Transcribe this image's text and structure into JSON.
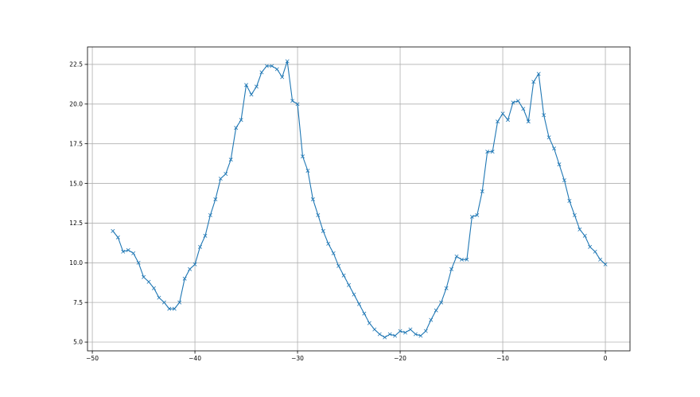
{
  "chart_data": {
    "type": "line",
    "title": "",
    "xlabel": "",
    "ylabel": "",
    "xlim": [
      -50.47,
      2.4
    ],
    "ylim": [
      4.45,
      23.6
    ],
    "grid": true,
    "marker": "x",
    "line_color": "#1f77b4",
    "grid_color": "#b0b0b0",
    "x_ticks": [
      -50,
      -40,
      -30,
      -20,
      -10,
      0
    ],
    "x_tick_labels": [
      "−50",
      "−40",
      "−30",
      "−20",
      "−10",
      "0"
    ],
    "y_ticks": [
      5.0,
      7.5,
      10.0,
      12.5,
      15.0,
      17.5,
      20.0,
      22.5
    ],
    "y_tick_labels": [
      "5.0",
      "7.5",
      "10.0",
      "12.5",
      "15.0",
      "17.5",
      "20.0",
      "22.5"
    ],
    "x_start": -48,
    "x_step": 0.5,
    "values": [
      12.0,
      11.6,
      10.7,
      10.8,
      10.6,
      10.0,
      9.1,
      8.8,
      8.4,
      7.8,
      7.5,
      7.1,
      7.1,
      7.5,
      9.0,
      9.6,
      9.9,
      11.0,
      11.7,
      13.0,
      14.0,
      15.3,
      15.6,
      16.5,
      18.5,
      19.0,
      21.2,
      20.6,
      21.1,
      22.0,
      22.4,
      22.4,
      22.2,
      21.7,
      22.7,
      20.2,
      20.0,
      16.7,
      15.8,
      14.0,
      13.0,
      12.0,
      11.2,
      10.6,
      9.8,
      9.2,
      8.6,
      8.0,
      7.4,
      6.8,
      6.2,
      5.8,
      5.5,
      5.3,
      5.5,
      5.4,
      5.7,
      5.6,
      5.8,
      5.5,
      5.4,
      5.7,
      6.4,
      7.0,
      7.5,
      8.4,
      9.6,
      10.4,
      10.2,
      10.2,
      12.9,
      13.0,
      14.5,
      17.0,
      17.0,
      18.9,
      19.4,
      19.0,
      20.1,
      20.2,
      19.7,
      18.9,
      21.4,
      21.9,
      19.3,
      17.9,
      17.2,
      16.2,
      15.2,
      13.9,
      13.0,
      12.1,
      11.7,
      11.0,
      10.7,
      10.2,
      9.9
    ]
  }
}
